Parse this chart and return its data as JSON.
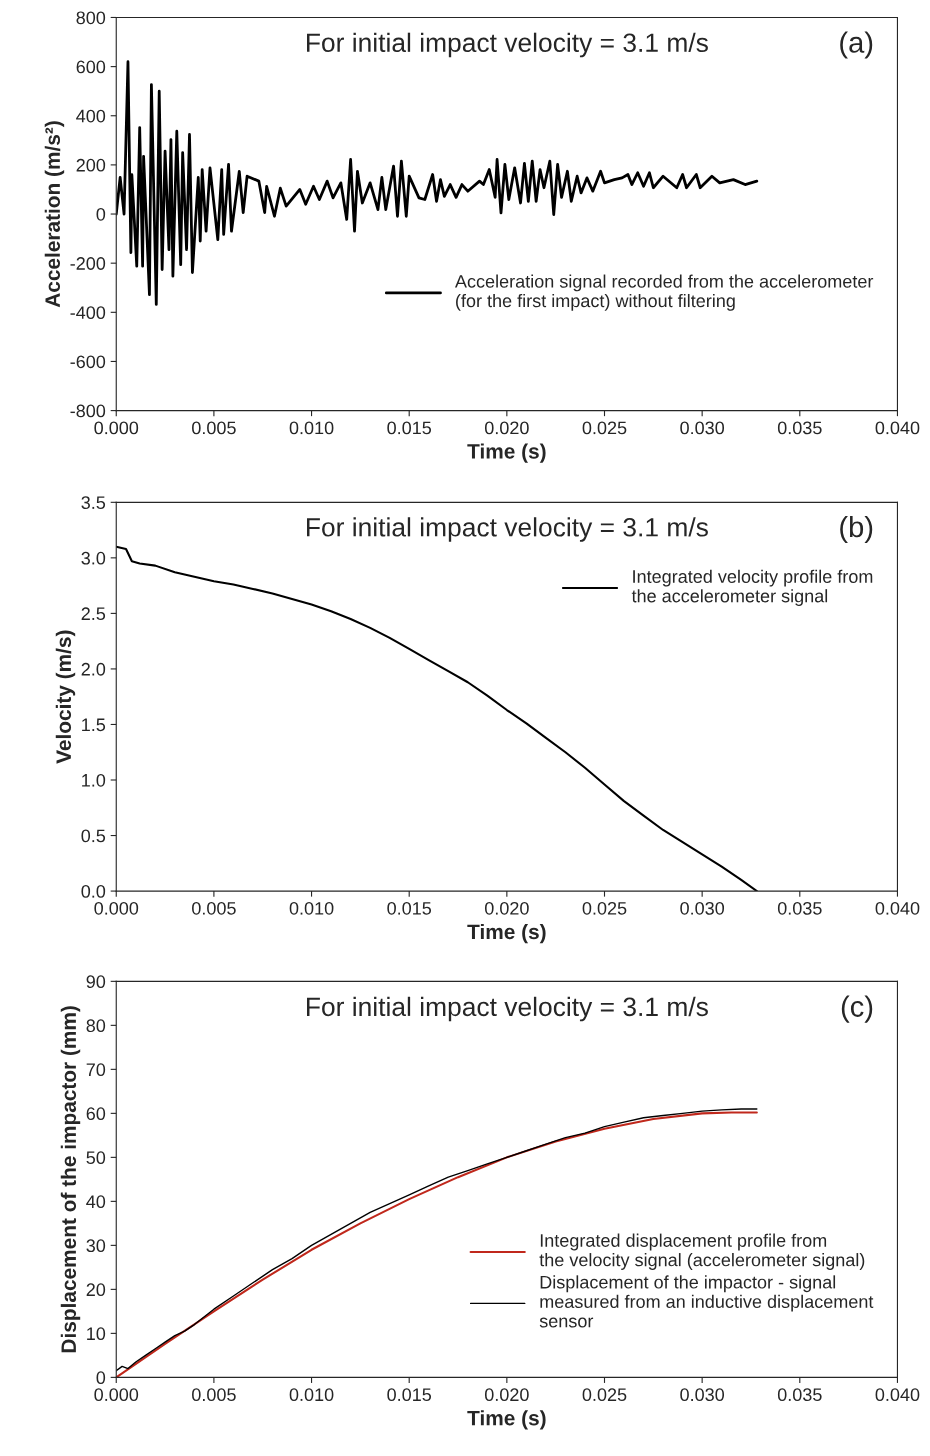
{
  "chart_data": [
    {
      "type": "line",
      "title": "For initial impact velocity = 3.1 m/s",
      "annotations": [
        "(a)"
      ],
      "xlabel": "Time (s)",
      "ylabel": "Acceleration (m/s²)",
      "xlim": [
        0,
        0.04
      ],
      "xticks": [
        {
          "value": 0,
          "label": "0.000"
        },
        {
          "value": 0.005,
          "label": "0.005"
        },
        {
          "value": 0.01,
          "label": "0.010"
        },
        {
          "value": 0.015,
          "label": "0.015"
        },
        {
          "value": 0.02,
          "label": "0.020"
        },
        {
          "value": 0.025,
          "label": "0.025"
        },
        {
          "value": 0.03,
          "label": "0.030"
        },
        {
          "value": 0.035,
          "label": "0.035"
        },
        {
          "value": 0.04,
          "label": "0.040"
        }
      ],
      "ylim": [
        -800,
        800
      ],
      "yticks": [
        -800,
        -600,
        -400,
        -200,
        0,
        200,
        400,
        600,
        800
      ],
      "grid": false,
      "legend": "bottom right",
      "series": [
        {
          "name": "Acceleration signal recorded from the accelerometer\n(for the first impact) without filtering",
          "color": "#000000",
          "x": [
            0,
            0.0002,
            0.0004,
            0.0006,
            0.00075,
            0.0008,
            0.00105,
            0.0012,
            0.00135,
            0.0014,
            0.0017,
            0.0018,
            0.00205,
            0.0022,
            0.00235,
            0.0025,
            0.0027,
            0.0028,
            0.0029,
            0.0031,
            0.0033,
            0.0034,
            0.0036,
            0.00375,
            0.0039,
            0.0042,
            0.0043,
            0.0044,
            0.0046,
            0.0048,
            0.0052,
            0.0054,
            0.0055,
            0.00575,
            0.0059,
            0.0063,
            0.0065,
            0.0067,
            0.0073,
            0.0076,
            0.0077,
            0.0081,
            0.0084,
            0.0087,
            0.0094,
            0.0097,
            0.0101,
            0.0104,
            0.0108,
            0.0111,
            0.0115,
            0.0118,
            0.012,
            0.0122,
            0.01235,
            0.0126,
            0.013,
            0.0134,
            0.0136,
            0.0138,
            0.0142,
            0.0144,
            0.0146,
            0.01485,
            0.015,
            0.0155,
            0.0158,
            0.0162,
            0.0164,
            0.0166,
            0.0168,
            0.0171,
            0.0174,
            0.0177,
            0.018,
            0.0186,
            0.0188,
            0.0191,
            0.0194,
            0.0195,
            0.0197,
            0.0199,
            0.0201,
            0.0204,
            0.0207,
            0.0209,
            0.0211,
            0.0213,
            0.0215,
            0.0217,
            0.0219,
            0.0222,
            0.0224,
            0.0226,
            0.0228,
            0.0231,
            0.0233,
            0.0236,
            0.0238,
            0.0241,
            0.0244,
            0.0248,
            0.025,
            0.0255,
            0.0259,
            0.0262,
            0.0264,
            0.0267,
            0.027,
            0.0273,
            0.0275,
            0.028,
            0.0287,
            0.029,
            0.0292,
            0.0297,
            0.0299,
            0.0305,
            0.0309,
            0.0316,
            0.0322,
            0.0328
          ],
          "values": [
            0,
            149,
            0,
            620,
            -157,
            160,
            -212,
            352,
            -212,
            235,
            -328,
            527,
            -368,
            500,
            -226,
            256,
            -145,
            303,
            -253,
            337,
            -206,
            250,
            -145,
            324,
            -238,
            149,
            -110,
            181,
            -70,
            188,
            -104,
            181,
            -83,
            202,
            -70,
            174,
            6,
            154,
            134,
            6,
            113,
            -9,
            105,
            32,
            100,
            40,
            113,
            59,
            134,
            66,
            127,
            -22,
            222,
            -70,
            174,
            45,
            127,
            18,
            149,
            18,
            195,
            -9,
            215,
            -9,
            154,
            66,
            59,
            161,
            52,
            140,
            72,
            120,
            68,
            120,
            93,
            134,
            120,
            181,
            68,
            222,
            5,
            202,
            59,
            188,
            45,
            206,
            52,
            215,
            52,
            181,
            107,
            215,
            -2,
            202,
            68,
            174,
            52,
            154,
            86,
            147,
            93,
            174,
            127,
            140,
            147,
            161,
            120,
            168,
            113,
            168,
            107,
            154,
            107,
            161,
            107,
            161,
            107,
            154,
            127,
            140,
            120,
            134
          ]
        }
      ]
    },
    {
      "type": "line",
      "title": "For initial impact velocity = 3.1 m/s",
      "annotations": [
        "(b)"
      ],
      "xlabel": "Time (s)",
      "ylabel": "Velocity (m/s)",
      "xlim": [
        0,
        0.04
      ],
      "xticks": [
        {
          "value": 0,
          "label": "0.000"
        },
        {
          "value": 0.005,
          "label": "0.005"
        },
        {
          "value": 0.01,
          "label": "0.010"
        },
        {
          "value": 0.015,
          "label": "0.015"
        },
        {
          "value": 0.02,
          "label": "0.020"
        },
        {
          "value": 0.025,
          "label": "0.025"
        },
        {
          "value": 0.03,
          "label": "0.030"
        },
        {
          "value": 0.035,
          "label": "0.035"
        },
        {
          "value": 0.04,
          "label": "0.040"
        }
      ],
      "ylim": [
        0,
        3.5
      ],
      "yticks": [
        {
          "value": 0,
          "label": "0.0"
        },
        {
          "value": 0.5,
          "label": "0.5"
        },
        {
          "value": 1,
          "label": "1.0"
        },
        {
          "value": 1.5,
          "label": "1.5"
        },
        {
          "value": 2,
          "label": "2.0"
        },
        {
          "value": 2.5,
          "label": "2.5"
        },
        {
          "value": 3,
          "label": "3.0"
        },
        {
          "value": 3.5,
          "label": "3.5"
        }
      ],
      "grid": false,
      "legend": "right",
      "series": [
        {
          "name": "Integrated velocity profile from\nthe accelerometer signal",
          "color": "#000000",
          "x": [
            0,
            0.0005,
            0.0008,
            0.0012,
            0.002,
            0.003,
            0.004,
            0.005,
            0.006,
            0.007,
            0.008,
            0.009,
            0.01,
            0.011,
            0.012,
            0.013,
            0.014,
            0.015,
            0.016,
            0.017,
            0.018,
            0.019,
            0.02,
            0.021,
            0.022,
            0.023,
            0.024,
            0.025,
            0.026,
            0.027,
            0.028,
            0.029,
            0.03,
            0.031,
            0.032,
            0.0328
          ],
          "values": [
            3.1,
            3.08,
            2.97,
            2.95,
            2.93,
            2.87,
            2.83,
            2.79,
            2.76,
            2.72,
            2.68,
            2.63,
            2.58,
            2.52,
            2.45,
            2.37,
            2.28,
            2.18,
            2.08,
            1.98,
            1.88,
            1.76,
            1.63,
            1.51,
            1.38,
            1.25,
            1.11,
            0.96,
            0.81,
            0.68,
            0.55,
            0.44,
            0.33,
            0.22,
            0.1,
            0
          ]
        }
      ]
    },
    {
      "type": "line",
      "title": "For initial impact velocity = 3.1 m/s",
      "annotations": [
        "(c)"
      ],
      "xlabel": "Time (s)",
      "ylabel": "Displacement of the impactor (mm)",
      "xlim": [
        0,
        0.04
      ],
      "xticks": [
        {
          "value": 0,
          "label": "0.000"
        },
        {
          "value": 0.005,
          "label": "0.005"
        },
        {
          "value": 0.01,
          "label": "0.010"
        },
        {
          "value": 0.015,
          "label": "0.015"
        },
        {
          "value": 0.02,
          "label": "0.020"
        },
        {
          "value": 0.025,
          "label": "0.025"
        },
        {
          "value": 0.03,
          "label": "0.030"
        },
        {
          "value": 0.035,
          "label": "0.035"
        },
        {
          "value": 0.04,
          "label": "0.040"
        }
      ],
      "ylim": [
        0,
        90
      ],
      "yticks": [
        0,
        10,
        20,
        30,
        40,
        50,
        60,
        70,
        80,
        90
      ],
      "grid": false,
      "legend": "bottom right",
      "series": [
        {
          "name": "Integrated displacement profile from\nthe velocity signal (accelerometer signal)",
          "color": "#c0281c",
          "x": [
            0,
            0.0025,
            0.005,
            0.0075,
            0.01,
            0.0125,
            0.015,
            0.0175,
            0.02,
            0.0225,
            0.025,
            0.0275,
            0.03,
            0.0315,
            0.0328
          ],
          "values": [
            0,
            7.6,
            15,
            22.2,
            29,
            35,
            40.5,
            45.5,
            50,
            53.6,
            56.5,
            58.7,
            60,
            60.2,
            60.2
          ]
        },
        {
          "name": "Displacement of the impactor - signal\nmeasured from an inductive displacement\nsensor",
          "color": "#000000",
          "x": [
            0,
            0.0003,
            0.0006,
            0.001,
            0.0015,
            0.002,
            0.0025,
            0.003,
            0.0035,
            0.004,
            0.005,
            0.006,
            0.007,
            0.008,
            0.009,
            0.01,
            0.011,
            0.012,
            0.013,
            0.014,
            0.015,
            0.016,
            0.017,
            0.018,
            0.019,
            0.02,
            0.021,
            0.022,
            0.023,
            0.024,
            0.025,
            0.026,
            0.027,
            0.028,
            0.029,
            0.03,
            0.031,
            0.032,
            0.0328
          ],
          "values": [
            1.5,
            2.5,
            2,
            3.5,
            5,
            6.5,
            8,
            9.5,
            10.5,
            12,
            15.5,
            18.5,
            21.5,
            24.5,
            27,
            30,
            32.5,
            35,
            37.5,
            39.5,
            41.5,
            43.5,
            45.5,
            47,
            48.5,
            50,
            51.5,
            53,
            54.5,
            55.5,
            57,
            58,
            59,
            59.5,
            60,
            60.5,
            60.8,
            61,
            61
          ]
        }
      ]
    }
  ]
}
